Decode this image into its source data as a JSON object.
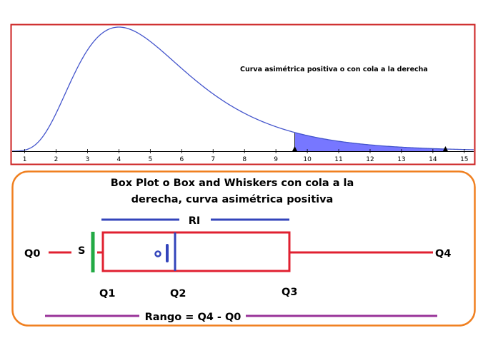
{
  "top_panel": {
    "curve_label": "Curva asimétrica positiva o con cola a la derecha",
    "x_ticks": [
      "1",
      "2",
      "3",
      "4",
      "5",
      "6",
      "7",
      "8",
      "9",
      "10",
      "11",
      "12",
      "13",
      "14",
      "15"
    ],
    "x_range": [
      0.6,
      15.3
    ],
    "shaded_range": [
      9.6,
      14.4
    ],
    "mode": 4,
    "colors": {
      "border": "#cc2222",
      "curve": "#4455cc",
      "fill": "#7777ff"
    }
  },
  "bottom_panel": {
    "title_lines": [
      "Box Plot o Box and Whiskers con cola a la",
      "derecha, curva asimétrica positiva"
    ],
    "labels": {
      "q0": "Q0",
      "s": "S",
      "ri": "RI",
      "q1": "Q1",
      "q2": "Q2",
      "q3": "Q3",
      "q4": "Q4",
      "rango": "Rango = Q4 - Q0"
    },
    "colors": {
      "border": "#f08020",
      "box": "#e02030",
      "median": "#3344bb",
      "s_bar": "#22aa44",
      "range": "#993399",
      "ri": "#3344bb"
    }
  }
}
